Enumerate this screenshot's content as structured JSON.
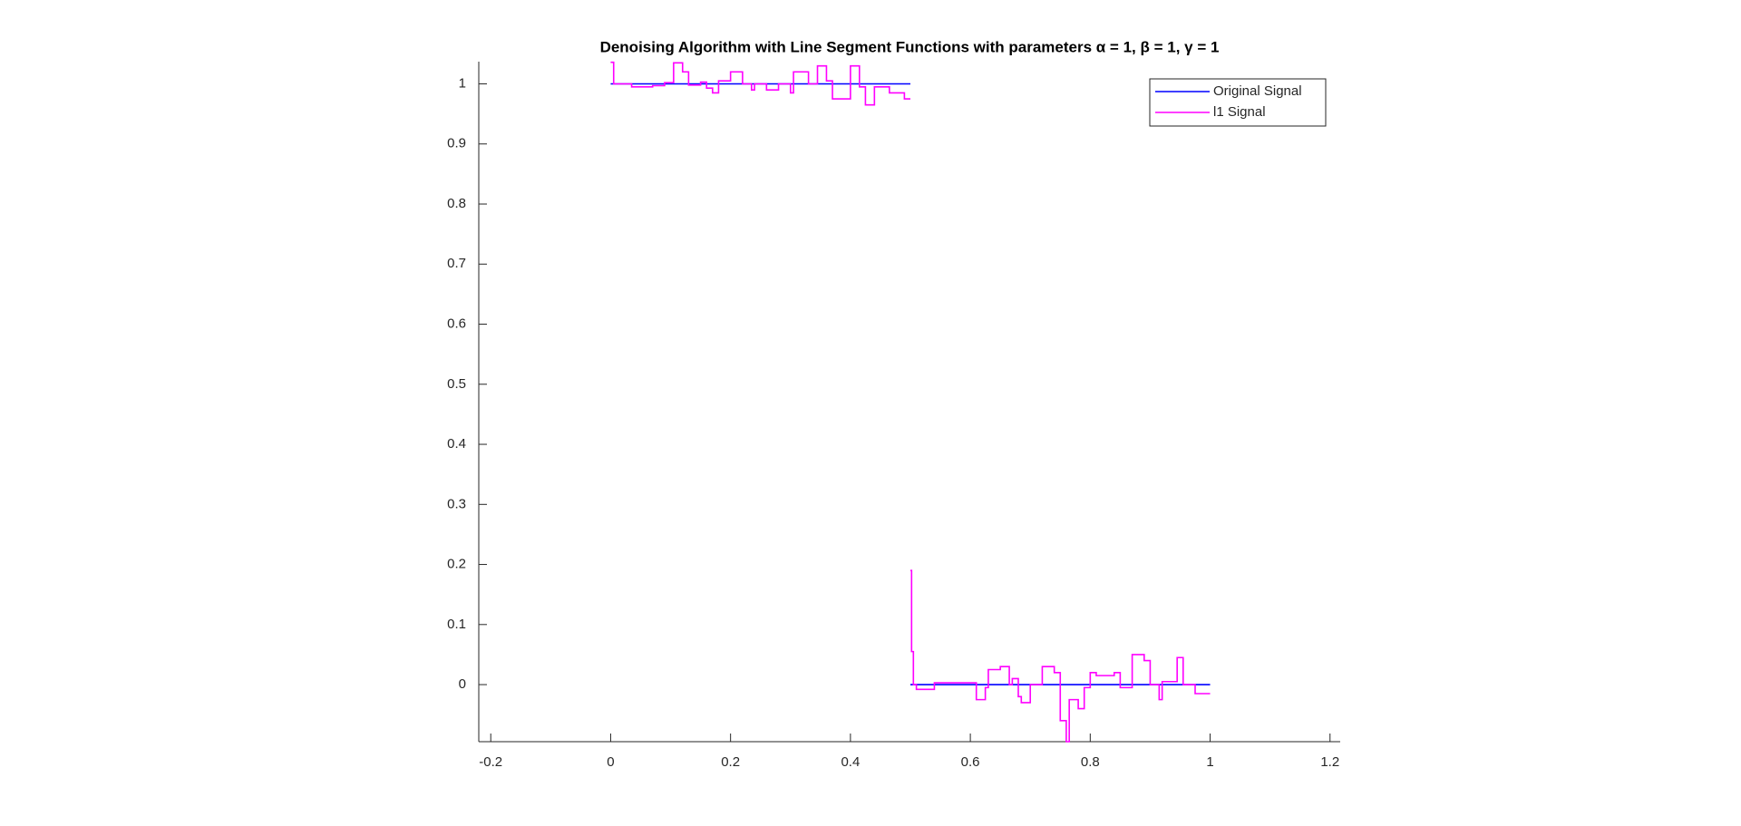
{
  "chart_data": {
    "type": "line",
    "title": "Denoising Algorithm with Line Segment Functions with parameters α = 1, β = 1, γ = 1",
    "xlim": [
      -0.22,
      1.217
    ],
    "ylim": [
      -0.095,
      1.037
    ],
    "xticks": [
      -0.2,
      0,
      0.2,
      0.4,
      0.6,
      0.8,
      1,
      1.2
    ],
    "yticks": [
      0,
      0.1,
      0.2,
      0.3,
      0.4,
      0.5,
      0.6,
      0.7,
      0.8,
      0.9,
      1
    ],
    "grid": false,
    "legend": "northeast",
    "series": [
      {
        "name": "Original Signal",
        "color": "#0000ff",
        "x": [
          0,
          0.5,
          0.5,
          0.5,
          1
        ],
        "values": [
          1,
          1,
          null,
          0,
          0
        ]
      },
      {
        "name": "l1 Signal",
        "color": "#ff00ff",
        "x": [
          0,
          0.005,
          0.005,
          0.035,
          0.035,
          0.07,
          0.07,
          0.09,
          0.09,
          0.105,
          0.105,
          0.12,
          0.12,
          0.13,
          0.13,
          0.15,
          0.15,
          0.16,
          0.16,
          0.17,
          0.17,
          0.18,
          0.18,
          0.2,
          0.2,
          0.22,
          0.22,
          0.235,
          0.235,
          0.24,
          0.24,
          0.26,
          0.26,
          0.28,
          0.28,
          0.3,
          0.3,
          0.305,
          0.305,
          0.33,
          0.33,
          0.345,
          0.345,
          0.36,
          0.36,
          0.37,
          0.37,
          0.4,
          0.4,
          0.415,
          0.415,
          0.425,
          0.425,
          0.44,
          0.44,
          0.465,
          0.465,
          0.49,
          0.49,
          0.5,
          0.5,
          0.5,
          0.502,
          0.502,
          0.505,
          0.505,
          0.51,
          0.51,
          0.54,
          0.54,
          0.61,
          0.61,
          0.625,
          0.625,
          0.63,
          0.63,
          0.65,
          0.65,
          0.665,
          0.665,
          0.67,
          0.67,
          0.68,
          0.68,
          0.685,
          0.685,
          0.7,
          0.7,
          0.72,
          0.72,
          0.74,
          0.74,
          0.75,
          0.75,
          0.76,
          0.76,
          0.765,
          0.765,
          0.78,
          0.78,
          0.79,
          0.79,
          0.8,
          0.8,
          0.81,
          0.81,
          0.84,
          0.84,
          0.85,
          0.85,
          0.87,
          0.87,
          0.89,
          0.89,
          0.9,
          0.9,
          0.915,
          0.915,
          0.92,
          0.92,
          0.945,
          0.945,
          0.955,
          0.955,
          0.975,
          0.975,
          1
        ],
        "values": [
          1.036,
          1.036,
          1,
          1,
          0.995,
          0.995,
          0.997,
          0.997,
          1.002,
          1.002,
          1.035,
          1.035,
          1.02,
          1.02,
          0.998,
          0.998,
          1.003,
          1.003,
          0.993,
          0.993,
          0.985,
          0.985,
          1.005,
          1.005,
          1.02,
          1.02,
          1,
          1,
          0.99,
          0.99,
          1,
          1,
          0.99,
          0.99,
          1,
          1,
          0.985,
          0.985,
          1.02,
          1.02,
          1,
          1,
          1.03,
          1.03,
          1.005,
          1.005,
          0.975,
          0.975,
          1.03,
          1.03,
          0.995,
          0.995,
          0.965,
          0.965,
          0.995,
          0.995,
          0.985,
          0.985,
          0.975,
          0.975,
          null,
          0.19,
          0.19,
          0.055,
          0.055,
          0,
          0,
          -0.008,
          -0.008,
          0.003,
          0.003,
          -0.025,
          -0.025,
          -0.005,
          -0.005,
          0.025,
          0.025,
          0.03,
          0.03,
          0,
          0,
          0.01,
          0.01,
          -0.02,
          -0.02,
          -0.03,
          -0.03,
          0,
          0,
          0.03,
          0.03,
          0.02,
          0.02,
          -0.06,
          -0.06,
          -0.095,
          -0.095,
          -0.025,
          -0.025,
          -0.04,
          -0.04,
          -0.005,
          -0.005,
          0.02,
          0.02,
          0.015,
          0.015,
          0.02,
          0.02,
          -0.005,
          -0.005,
          0.05,
          0.05,
          0.04,
          0.04,
          0,
          0,
          -0.025,
          -0.025,
          0.005,
          0.005,
          0.045,
          0.045,
          0,
          0,
          -0.015,
          -0.015
        ]
      }
    ]
  }
}
